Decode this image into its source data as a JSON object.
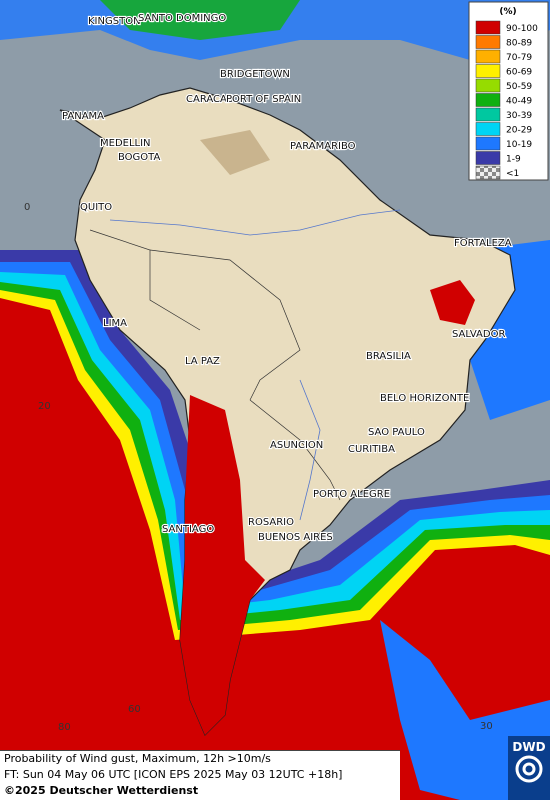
{
  "legend": {
    "unit": "(%)",
    "items": [
      {
        "label": "90-100",
        "color": "#d00000"
      },
      {
        "label": "80-89",
        "color": "#ff7a00"
      },
      {
        "label": "70-79",
        "color": "#ffb000"
      },
      {
        "label": "60-69",
        "color": "#fff000"
      },
      {
        "label": "50-59",
        "color": "#96dc00"
      },
      {
        "label": "40-49",
        "color": "#10b010"
      },
      {
        "label": "30-39",
        "color": "#00c8a0"
      },
      {
        "label": "20-29",
        "color": "#00d4f4"
      },
      {
        "label": "10-19",
        "color": "#1e78ff"
      },
      {
        "label": "1-9",
        "color": "#3a3aa8"
      },
      {
        "label": "<1",
        "color": "#b0b0b0"
      }
    ]
  },
  "cities": [
    "KINGSTON",
    "SANTO DOMINGO",
    "BRIDGETOWN",
    "CARACAS",
    "PORT OF SPAIN",
    "PANAMA",
    "MEDELLIN",
    "BOGOTA",
    "PARAMARIBO",
    "QUITO",
    "FORTALEZA",
    "LIMA",
    "SALVADOR",
    "BRASILIA",
    "LA PAZ",
    "BELO HORIZONTE",
    "SAO PAULO",
    "ASUNCION",
    "CURITIBA",
    "PORTO ALEGRE",
    "ROSARIO",
    "SANTIAGO",
    "BUENOS AIRES"
  ],
  "grid_labels": [
    "0",
    "20",
    "80",
    "60",
    "30"
  ],
  "caption": {
    "line1": "Probability of Wind gust, Maximum, 12h >10m/s",
    "line2": "FT: Sun 04 May 06 UTC [ICON EPS 2025 May 03 12UTC +18h]",
    "line3": "©2025 Deutscher Wetterdienst"
  },
  "logo": "DWD"
}
